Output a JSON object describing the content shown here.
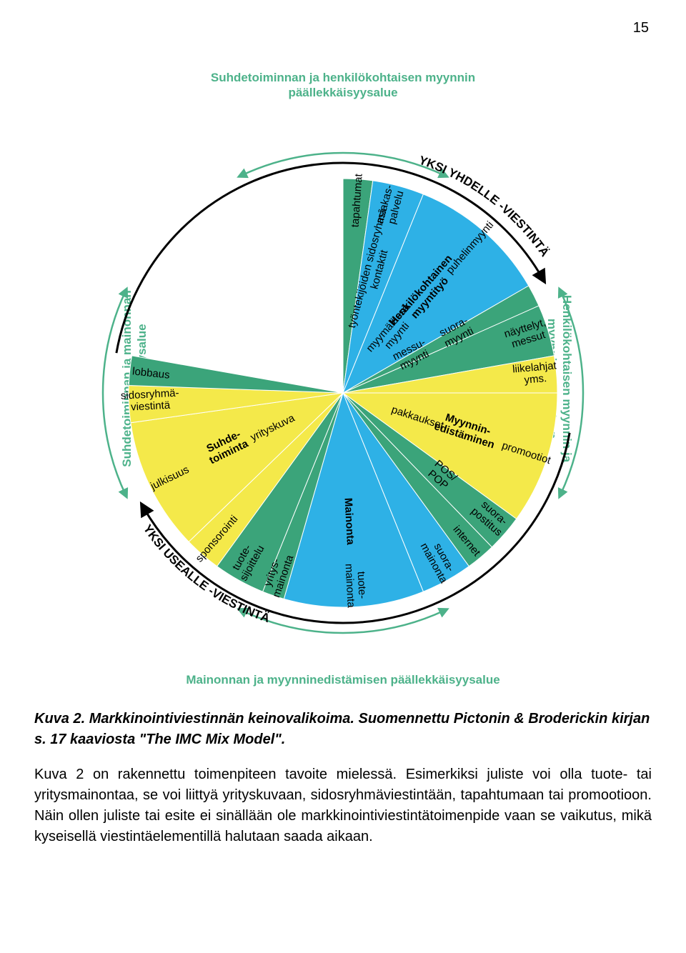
{
  "page_number": "15",
  "colors": {
    "yellow": "#f4e94a",
    "green": "#3ba47a",
    "blue": "#2eb1e6",
    "outer_label": "#4db28a",
    "text": "#000000",
    "arc_stroke": "#000000",
    "green_arrow": "#4db28a"
  },
  "outer_labels": {
    "top": "Suhdetoiminnan ja henkilökohtaisen myynnin päällekkäisyysalue",
    "bottom": "Mainonnan ja myynninedistämisen päällekkäisyysalue",
    "left": "Suhdetoiminnan ja mainonnan päällekkäisyysalue",
    "right": "Henkilökohtaisen myynnin ja myynninedistämisen päällekkäisyysalue"
  },
  "ring_labels": {
    "top_right": "YKSI YHDELLE -VIESTINTÄ",
    "bottom_left": "YKSI USEALLE -VIESTINTÄ"
  },
  "pie": {
    "radius": 300,
    "slices": [
      {
        "angle_deg": 8,
        "color_key": "green",
        "label_outer": "tapahtumat",
        "label_mid": "",
        "label_inner": ""
      },
      {
        "angle_deg": 14,
        "color_key": "blue",
        "label_outer": "asiakas- palvelu",
        "label_mid": "työntekijöiden sidosryhmä- kontaktit",
        "label_inner": ""
      },
      {
        "angle_deg": 38,
        "color_key": "blue",
        "label_outer": "puhelinmyynti",
        "label_mid": "Henkilökohtainen myyntityö",
        "label_inner": "myymälässä myynti",
        "bold_mid": true
      },
      {
        "angle_deg": 6,
        "color_key": "green",
        "label_outer": "",
        "label_mid": "suora- myynti",
        "label_inner": "messu- myynti"
      },
      {
        "angle_deg": 14,
        "color_key": "green",
        "label_outer": "näyttelyt, messut",
        "label_mid": "",
        "label_inner": ""
      },
      {
        "angle_deg": 10,
        "color_key": "yellow",
        "label_outer": "liikelahjat yms.",
        "label_mid": "",
        "label_inner": ""
      },
      {
        "angle_deg": 36,
        "color_key": "yellow",
        "label_outer": "promootiot",
        "label_mid": "Myynnin- edistäminen",
        "label_inner": "pakkaukset",
        "bold_mid": true
      },
      {
        "angle_deg": 10,
        "color_key": "green",
        "label_outer": "suora- postitus",
        "label_mid": "POS/ POP",
        "label_inner": ""
      },
      {
        "angle_deg": 8,
        "color_key": "green",
        "label_outer": "internet",
        "label_mid": "",
        "label_inner": ""
      },
      {
        "angle_deg": 14,
        "color_key": "blue",
        "label_outer": "suora- mainonta",
        "label_mid": "",
        "label_inner": ""
      },
      {
        "angle_deg": 38,
        "color_key": "blue",
        "label_outer": "tuote- mainonta",
        "label_mid": "Mainonta",
        "label_inner": "",
        "bold_mid": true
      },
      {
        "angle_deg": 6,
        "color_key": "green",
        "label_outer": "yritys- mainonta",
        "label_mid": "",
        "label_inner": ""
      },
      {
        "angle_deg": 14,
        "color_key": "green",
        "label_outer": "tuote- sijoittelu",
        "label_mid": "",
        "label_inner": ""
      },
      {
        "angle_deg": 10,
        "color_key": "yellow",
        "label_outer": "sponsorointi",
        "label_mid": "",
        "label_inner": ""
      },
      {
        "angle_deg": 36,
        "color_key": "yellow",
        "label_outer": "julkisuus",
        "label_mid": "Suhde- toiminta",
        "label_inner": "yrityskuva",
        "bold_mid": true
      },
      {
        "angle_deg": 10,
        "color_key": "yellow",
        "label_outer": "sidosryhmä- viestintä",
        "label_mid": "",
        "label_inner": ""
      },
      {
        "angle_deg": 8,
        "color_key": "green",
        "label_outer": "lobbaus",
        "label_mid": "",
        "label_inner": ""
      }
    ],
    "outer_radius_label": 270,
    "mid_radius_label": 180,
    "inner_radius_label": 110
  },
  "black_arcs": {
    "radius": 322,
    "width": 3,
    "arc1": {
      "start_deg": -80,
      "end_deg": 60
    },
    "arc2": {
      "start_deg": 100,
      "end_deg": 240
    }
  },
  "green_arrows": {
    "radius": 336,
    "stroke_width": 2.5,
    "arcs": [
      {
        "start_deg": -25,
        "end_deg": 25
      },
      {
        "start_deg": 65,
        "end_deg": 115
      },
      {
        "start_deg": 155,
        "end_deg": 205
      },
      {
        "start_deg": 245,
        "end_deg": 295
      }
    ]
  },
  "caption": "Kuva 2. Markkinointiviestinnän keinovalikoima. Suomennettu Pictonin & Broderickin kirjan s. 17 kaaviosta \"The IMC Mix Model\".",
  "body": "Kuva 2 on rakennettu toimenpiteen tavoite mielessä. Esimerkiksi juliste voi olla tuote- tai yritysmainontaa, se voi liittyä yrityskuvaan, sidosryhmäviestintään, tapahtumaan tai promootioon. Näin ollen juliste tai esite ei sinällään ole markkinointiviestintätoimenpide vaan se vaikutus, mikä kyseisellä viestintäelementillä halutaan saada aikaan."
}
